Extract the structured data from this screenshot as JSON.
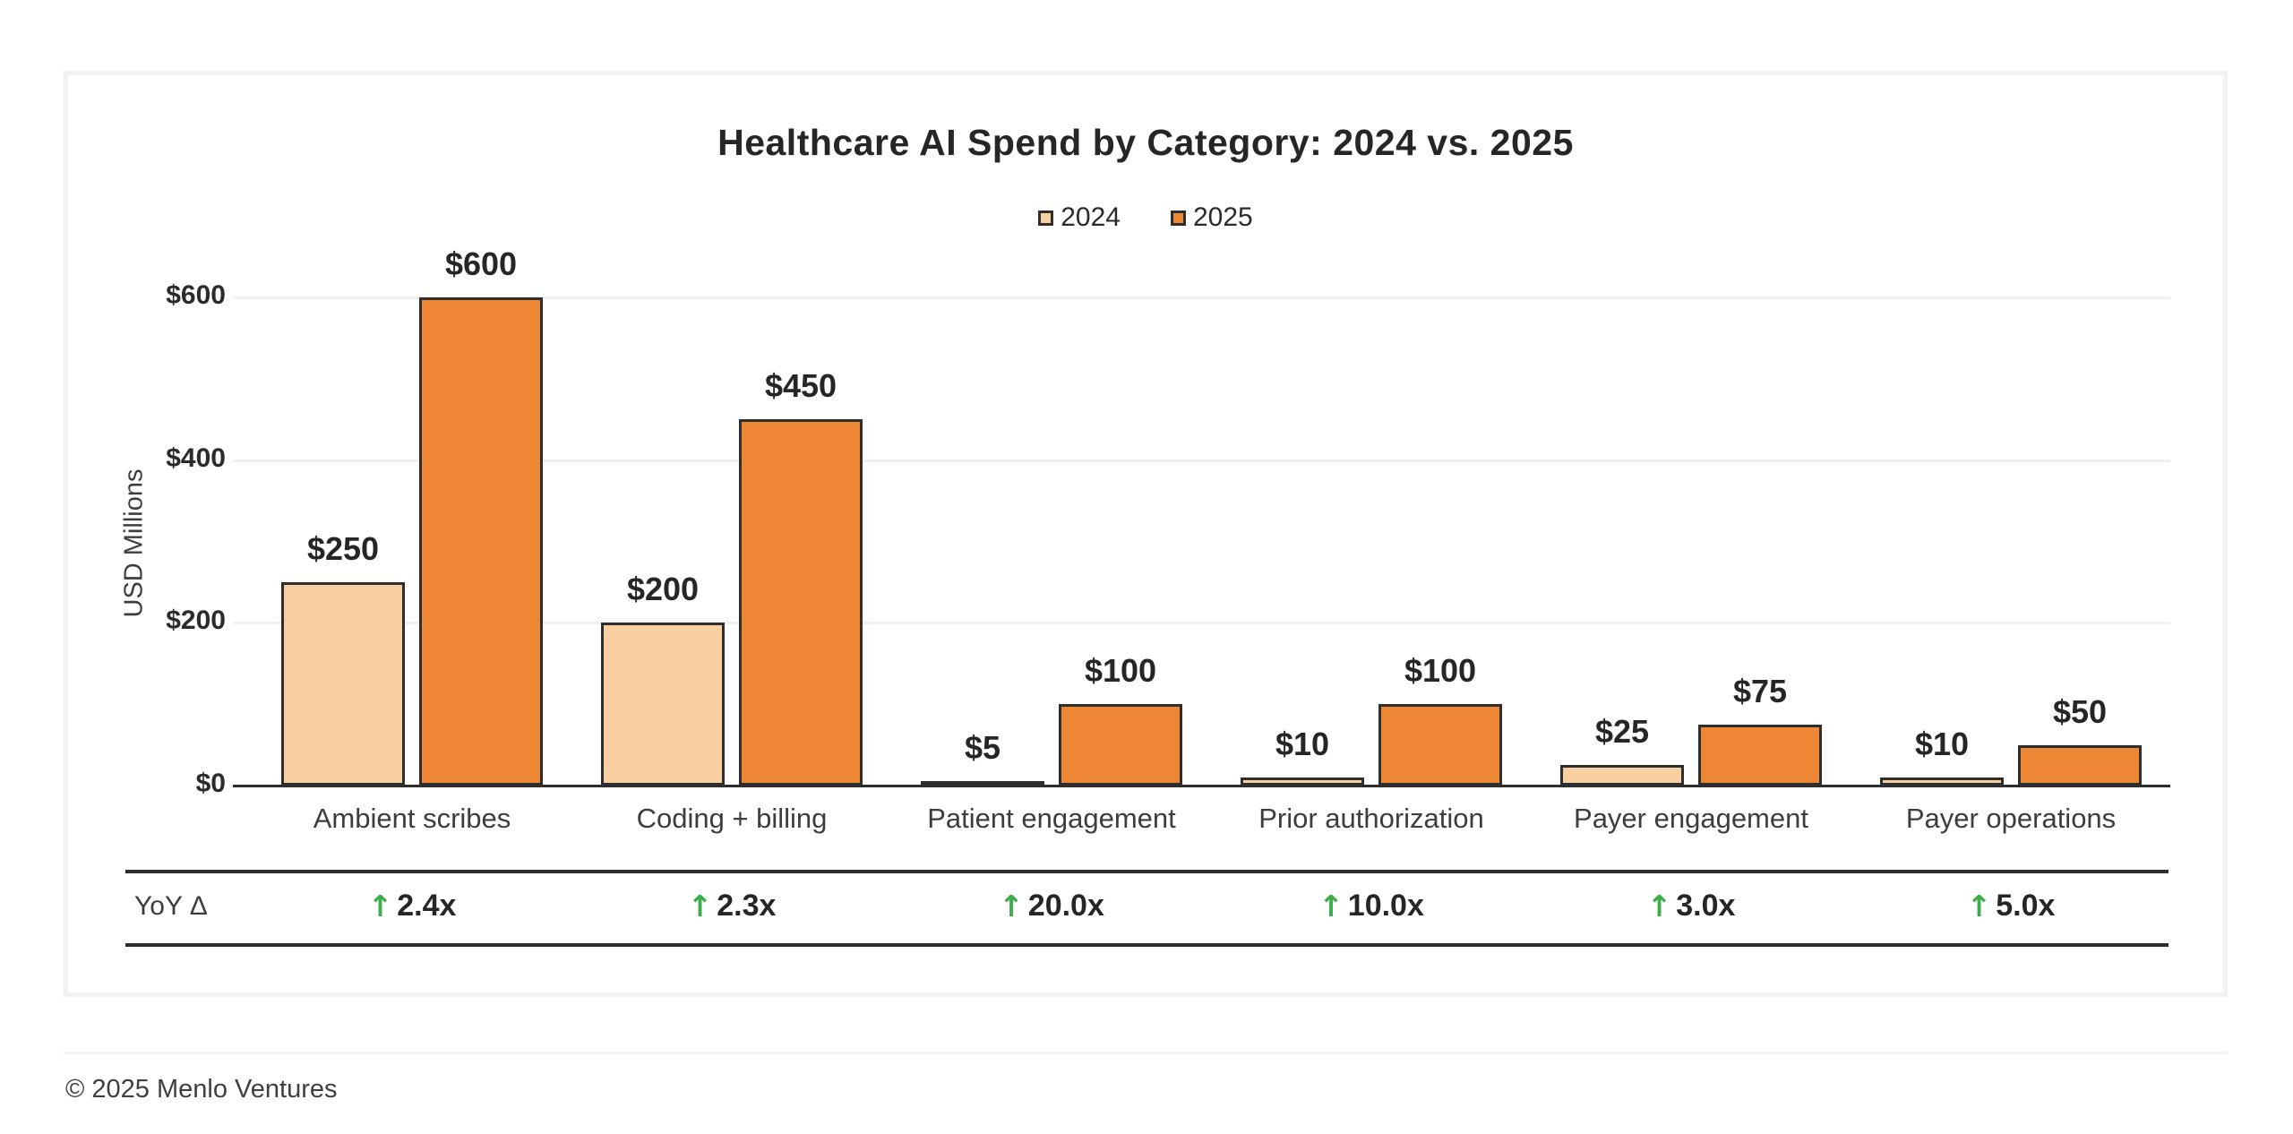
{
  "chart_data": {
    "type": "bar",
    "title": "Healthcare AI Spend by Category: 2024 vs. 2025",
    "ylabel": "USD Millions",
    "xlabel": "",
    "categories": [
      "Ambient scribes",
      "Coding + billing",
      "Patient engagement",
      "Prior authorization",
      "Payer engagement",
      "Payer operations"
    ],
    "series": [
      {
        "name": "2024",
        "color": "#F7CFA0",
        "values": [
          250,
          200,
          5,
          10,
          25,
          10
        ],
        "labels": [
          "$250",
          "$200",
          "$5",
          "$10",
          "$25",
          "$10"
        ]
      },
      {
        "name": "2025",
        "color": "#EE8733",
        "values": [
          600,
          450,
          100,
          100,
          75,
          50
        ],
        "labels": [
          "$600",
          "$450",
          "$100",
          "$100",
          "$75",
          "$50"
        ]
      }
    ],
    "yticks": [
      {
        "value": 0,
        "label": "$0"
      },
      {
        "value": 200,
        "label": "$200"
      },
      {
        "value": 400,
        "label": "$400"
      },
      {
        "value": 600,
        "label": "$600"
      }
    ],
    "ylim": [
      0,
      600
    ],
    "grid": true,
    "legend_position": "top-center"
  },
  "yoy_row": {
    "label": "YoY Δ",
    "arrow": "↑",
    "values": [
      "2.4x",
      "2.3x",
      "20.0x",
      "10.0x",
      "3.0x",
      "5.0x"
    ]
  },
  "footer": {
    "copyright": "© 2025 Menlo Ventures"
  },
  "colors": {
    "bar_2024": "#F7CFA0",
    "bar_2025": "#EE8733",
    "bar_border": "#2e2e2e",
    "arrow_green": "#3BAE4A",
    "gridline": "#efefef",
    "axis": "#2e2e2e",
    "text_dark": "#262626",
    "text_medium": "#3d3d3d",
    "card_border": "#f1f1f1"
  }
}
